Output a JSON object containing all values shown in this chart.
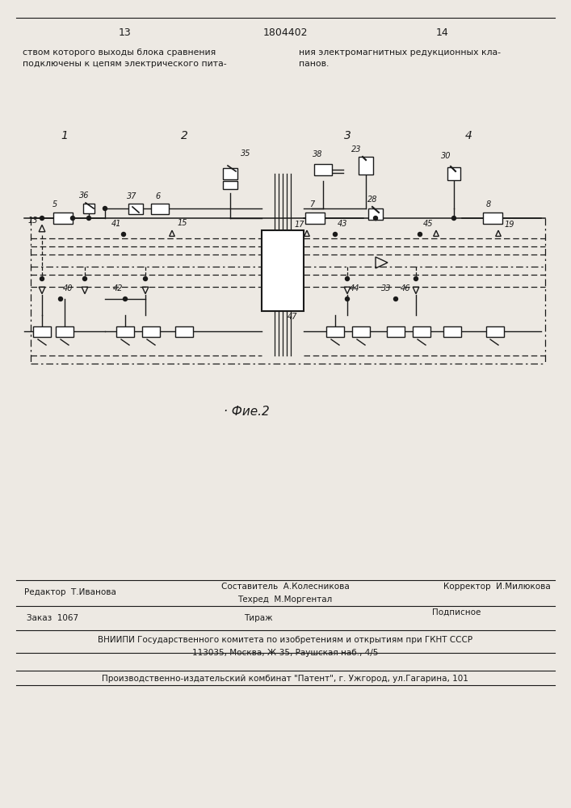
{
  "page_number_left": "13",
  "page_number_center": "1804402",
  "page_number_right": "14",
  "top_text_left": "ством которого выходы блока сравнения\nподключены к цепям электрического пита-",
  "top_text_right": "ния электромагнитных редукционных кла-\nпанов.",
  "figure_caption": "· Фие.2",
  "bottom_editor": "Редактор  Т.Иванова",
  "bottom_composer": "Составитель  А.Колесникова",
  "bottom_techred": "Техред  М.Моргентал",
  "bottom_corrector": "Корректор  И.Милюкова",
  "bottom_order": "Заказ  1067",
  "bottom_tirazh": "Тираж",
  "bottom_podpisnoe": "Подписное",
  "bottom_vniiipi": "ВНИИПИ Государственного комитета по изобретениям и открытиям при ГКНТ СССР",
  "bottom_address": "113035, Москва, Ж-35, Раушская наб., 4/5",
  "bottom_factory": "Производственно-издательский комбинат \"Патент\", г. Ужгород, ул.Гагарина, 101",
  "bg_color": "#ede9e3",
  "line_color": "#1a1a1a",
  "text_color": "#1a1a1a"
}
